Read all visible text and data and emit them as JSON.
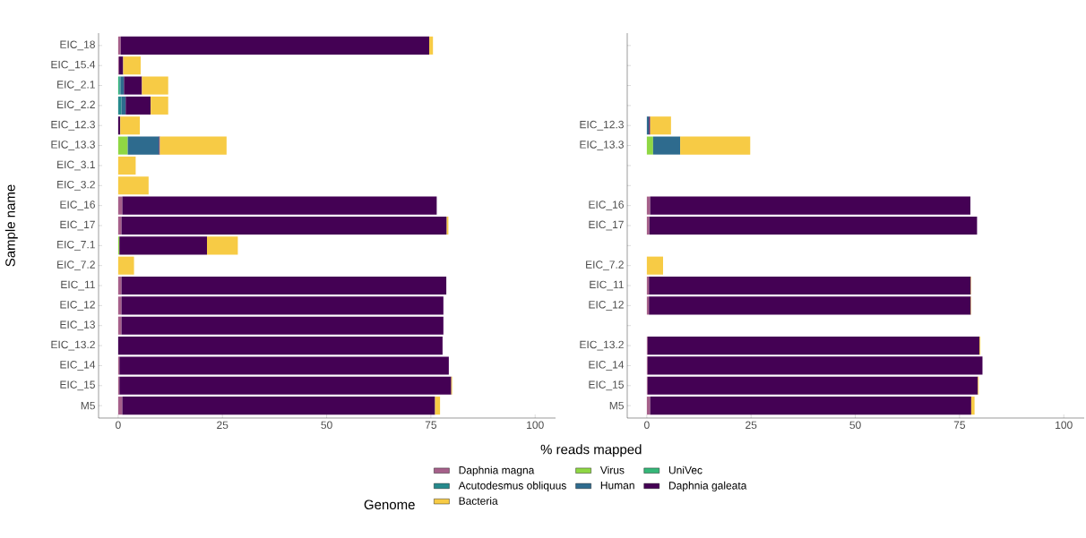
{
  "chart_data": [
    {
      "type": "bar",
      "orientation": "horizontal",
      "stacked": true,
      "xlabel": "% reads mapped",
      "ylabel": "Sample name",
      "legend": "bottom",
      "legend_title": "Genome",
      "grid": false,
      "categories": [
        "EIC_18",
        "EIC_15.4",
        "EIC_2.1",
        "EIC_2.2",
        "EIC_12.3",
        "EIC_13.3",
        "EIC_3.1",
        "EIC_3.2",
        "EIC_16",
        "EIC_17",
        "EIC_7.1",
        "EIC_7.2",
        "EIC_11",
        "EIC_12",
        "EIC_13",
        "EIC_13.2",
        "EIC_14",
        "EIC_15",
        "M5"
      ],
      "xlim": [
        -4.7,
        104.9
      ],
      "xticks": [
        0,
        25,
        50,
        75,
        100
      ],
      "series": [
        {
          "name": "Daphnia magna",
          "color": "#a6608a",
          "values": [
            0.6,
            0.2,
            null,
            null,
            null,
            null,
            null,
            null,
            1.0,
            0.8,
            null,
            null,
            0.8,
            0.8,
            0.8,
            null,
            0.3,
            0.3,
            1.0
          ]
        },
        {
          "name": "Virus",
          "color": "#8fd744",
          "values": [
            null,
            null,
            null,
            null,
            null,
            2.3,
            null,
            null,
            null,
            null,
            0.3,
            null,
            null,
            null,
            null,
            null,
            null,
            null,
            null
          ]
        },
        {
          "name": "UniVec",
          "color": "#35b779",
          "values": [
            null,
            null,
            0.3,
            null,
            null,
            null,
            null,
            null,
            null,
            null,
            null,
            null,
            null,
            null,
            null,
            null,
            null,
            null,
            null
          ]
        },
        {
          "name": "Acutodesmus obliquus",
          "color": "#25898c",
          "values": [
            null,
            null,
            0.3,
            0.8,
            null,
            null,
            null,
            null,
            null,
            null,
            null,
            null,
            null,
            null,
            null,
            null,
            null,
            null,
            null
          ]
        },
        {
          "name": "Human",
          "color": "#2e6b8e",
          "values": [
            null,
            null,
            0.8,
            1.0,
            null,
            7.5,
            null,
            null,
            null,
            null,
            null,
            null,
            null,
            null,
            null,
            null,
            null,
            null,
            null
          ]
        },
        {
          "name": "Daphnia galeata",
          "color": "#440154",
          "values": [
            74.0,
            1.0,
            4.3,
            6.0,
            0.5,
            0.2,
            null,
            null,
            75.4,
            78.0,
            21.0,
            null,
            77.9,
            77.2,
            77.2,
            77.8,
            79.0,
            79.6,
            75.0
          ]
        },
        {
          "name": "Bacteria",
          "color": "#f7cb45",
          "values": [
            0.9,
            4.2,
            6.3,
            4.2,
            4.7,
            16.0,
            4.2,
            7.3,
            null,
            0.4,
            7.4,
            3.8,
            null,
            null,
            null,
            null,
            null,
            0.2,
            1.2
          ]
        }
      ]
    },
    {
      "type": "bar",
      "orientation": "horizontal",
      "stacked": true,
      "grid": false,
      "categories": [
        null,
        null,
        null,
        null,
        "EIC_12.3",
        "EIC_13.3",
        null,
        null,
        "EIC_16",
        "EIC_17",
        null,
        "EIC_7.2",
        "EIC_11",
        "EIC_12",
        null,
        "EIC_13.2",
        "EIC_14",
        "EIC_15",
        "M5"
      ],
      "xlim": [
        -4.7,
        104.9
      ],
      "xticks": [
        0,
        25,
        50,
        75,
        100
      ],
      "series": [
        {
          "color": "#a6608a",
          "values": [
            null,
            null,
            null,
            null,
            null,
            null,
            null,
            null,
            0.8,
            0.6,
            null,
            null,
            0.5,
            0.5,
            null,
            0.2,
            0.2,
            0.2,
            0.8
          ]
        },
        {
          "color": "#8fd744",
          "values": [
            null,
            null,
            null,
            null,
            null,
            1.5,
            null,
            null,
            null,
            null,
            null,
            null,
            null,
            null,
            null,
            null,
            null,
            null,
            null
          ]
        },
        {
          "color": "#35b779",
          "values": [
            null,
            null,
            null,
            null,
            null,
            null,
            null,
            null,
            null,
            null,
            null,
            null,
            null,
            null,
            null,
            null,
            null,
            null,
            null
          ]
        },
        {
          "color": "#25898c",
          "values": [
            null,
            null,
            null,
            null,
            null,
            null,
            null,
            null,
            null,
            null,
            null,
            null,
            null,
            null,
            null,
            null,
            null,
            null,
            null
          ]
        },
        {
          "color": "#2e6b8e",
          "values": [
            null,
            null,
            null,
            null,
            0.5,
            6.5,
            null,
            null,
            null,
            null,
            null,
            null,
            null,
            null,
            null,
            null,
            null,
            null,
            null
          ]
        },
        {
          "color": "#440154",
          "values": [
            null,
            null,
            null,
            null,
            0.3,
            null,
            null,
            null,
            76.8,
            78.6,
            null,
            null,
            77.2,
            77.2,
            null,
            79.6,
            80.3,
            79.2,
            77.0
          ]
        },
        {
          "color": "#f7cb45",
          "values": [
            null,
            null,
            null,
            null,
            5.0,
            16.8,
            null,
            null,
            null,
            null,
            null,
            3.9,
            0.1,
            0.1,
            null,
            0.2,
            null,
            0.2,
            0.8
          ]
        }
      ]
    }
  ]
}
